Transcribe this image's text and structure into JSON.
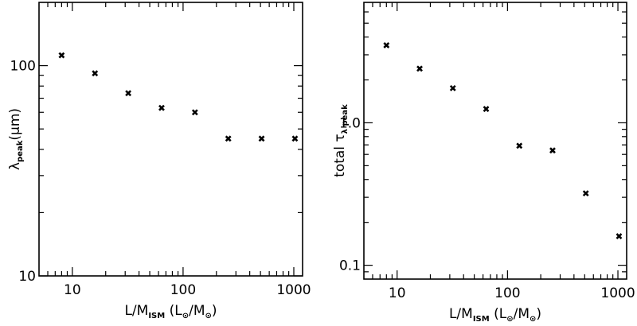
{
  "chart_data": [
    {
      "type": "scatter",
      "x_scale": "log",
      "y_scale": "log",
      "xlim": [
        5,
        1200
      ],
      "ylim": [
        10,
        200
      ],
      "xticks": [
        10,
        100,
        1000
      ],
      "xtick_labels": [
        "10",
        "100",
        "1000"
      ],
      "yticks": [
        10,
        100
      ],
      "ytick_labels": [
        "10",
        "100"
      ],
      "xlabel": {
        "main": "L/M",
        "sub": "ISM",
        "after": " (L",
        "sun1": "⊙",
        "mid": "/M",
        "sun2": "⊙",
        "close": ")"
      },
      "ylabel": {
        "main": "λ",
        "sub": "peak",
        "after": "(μm)"
      },
      "marker": "x",
      "grid": false,
      "points": [
        {
          "x": 8,
          "y": 112
        },
        {
          "x": 16,
          "y": 92
        },
        {
          "x": 32,
          "y": 74
        },
        {
          "x": 64,
          "y": 63
        },
        {
          "x": 128,
          "y": 60
        },
        {
          "x": 256,
          "y": 45
        },
        {
          "x": 512,
          "y": 45
        },
        {
          "x": 1024,
          "y": 45
        }
      ]
    },
    {
      "type": "scatter",
      "x_scale": "log",
      "y_scale": "log",
      "xlim": [
        5,
        1200
      ],
      "ylim": [
        0.08,
        7
      ],
      "xticks": [
        10,
        100,
        1000
      ],
      "xtick_labels": [
        "10",
        "100",
        "1000"
      ],
      "yticks": [
        0.1,
        1
      ],
      "ytick_labels": [
        "0.1",
        "1.0"
      ],
      "xlabel": {
        "main": "L/M",
        "sub": "ISM",
        "after": " (L",
        "sun1": "⊙",
        "mid": "/M",
        "sun2": "⊙",
        "close": ")"
      },
      "ylabel": {
        "main": "total τ",
        "sub": "λ peak",
        "after": ""
      },
      "marker": "x",
      "grid": false,
      "points": [
        {
          "x": 8,
          "y": 3.5
        },
        {
          "x": 16,
          "y": 2.4
        },
        {
          "x": 32,
          "y": 1.75
        },
        {
          "x": 64,
          "y": 1.25
        },
        {
          "x": 128,
          "y": 0.69
        },
        {
          "x": 256,
          "y": 0.64
        },
        {
          "x": 512,
          "y": 0.32
        },
        {
          "x": 1024,
          "y": 0.16
        }
      ]
    }
  ]
}
